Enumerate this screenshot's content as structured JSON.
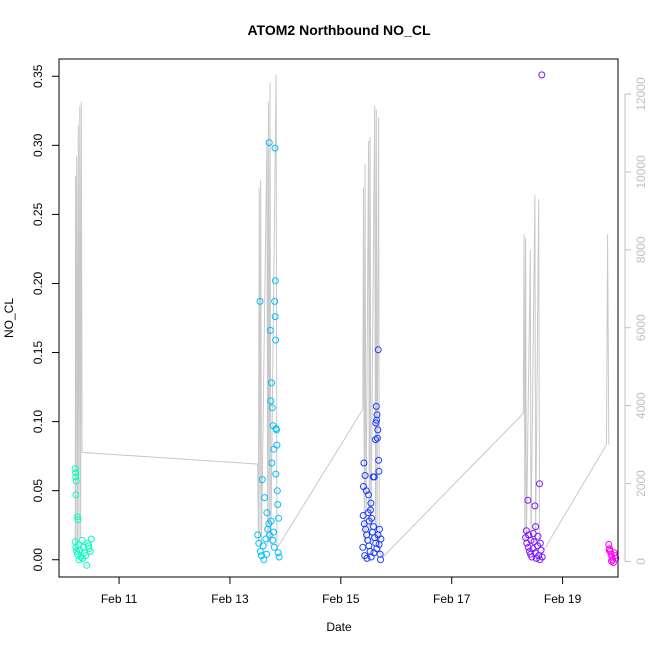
{
  "chart_data": {
    "type": "scatter",
    "title": "ATOM2 Northbound NO_CL",
    "xlabel": "Date",
    "ylabel": "NO_CL",
    "x_axis": {
      "type": "date",
      "range": [
        "2014-02-09T22:00",
        "2014-02-19T23:59"
      ],
      "ticks": [
        {
          "value": "2014-02-11",
          "label": "Feb 11"
        },
        {
          "value": "2014-02-13",
          "label": "Feb 13"
        },
        {
          "value": "2014-02-15",
          "label": "Feb 15"
        },
        {
          "value": "2014-02-17",
          "label": "Feb 17"
        },
        {
          "value": "2014-02-19",
          "label": "Feb 19"
        }
      ]
    },
    "y_axis": {
      "range": [
        -0.0125,
        0.3625
      ],
      "ticks": [
        0.0,
        0.05,
        0.1,
        0.15,
        0.2,
        0.25,
        0.3,
        0.35
      ],
      "tick_labels": [
        "0.00",
        "0.05",
        "0.10",
        "0.15",
        "0.20",
        "0.25",
        "0.30",
        "0.35"
      ]
    },
    "y2_axis": {
      "range": [
        -400,
        12900
      ],
      "ticks": [
        0,
        2000,
        4000,
        6000,
        8000,
        10000,
        12000
      ],
      "tick_labels": [
        "0",
        "2000",
        "4000",
        "6000",
        "8000",
        "10000",
        "12000"
      ],
      "color": "#c0c0c0"
    },
    "colors": {
      "g1": "#00ffbf",
      "g2": "#00bfff",
      "g3": "#1c3cff",
      "g4": "#7b17ff",
      "g5": "#ff00ff",
      "line": "#c8c8c8",
      "frame": "#000000"
    },
    "point_groups": [
      {
        "color_key": "g1",
        "points": [
          [
            "2014-02-10T05:00",
            0.066
          ],
          [
            "2014-02-10T05:10",
            0.063
          ],
          [
            "2014-02-10T05:15",
            0.06
          ],
          [
            "2014-02-10T05:30",
            0.057
          ],
          [
            "2014-02-10T05:20",
            0.047
          ],
          [
            "2014-02-10T06:00",
            0.031
          ],
          [
            "2014-02-10T06:10",
            0.029
          ],
          [
            "2014-02-10T05:00",
            0.013
          ],
          [
            "2014-02-10T05:20",
            0.009
          ],
          [
            "2014-02-10T05:40",
            0.006
          ],
          [
            "2014-02-10T06:00",
            0.004
          ],
          [
            "2014-02-10T06:30",
            0.011
          ],
          [
            "2014-02-10T07:00",
            0.007
          ],
          [
            "2014-02-10T07:30",
            0.002
          ],
          [
            "2014-02-10T08:00",
            0.014
          ],
          [
            "2014-02-10T08:30",
            0.009
          ],
          [
            "2014-02-10T09:00",
            0.005
          ],
          [
            "2014-02-10T09:30",
            0.003
          ],
          [
            "2014-02-10T10:00",
            -0.004
          ],
          [
            "2014-02-10T10:30",
            0.012
          ],
          [
            "2014-02-10T11:00",
            0.008
          ],
          [
            "2014-02-10T11:30",
            0.006
          ],
          [
            "2014-02-10T12:00",
            0.015
          ],
          [
            "2014-02-10T06:40",
            0.0
          ],
          [
            "2014-02-10T08:10",
            0.001
          ],
          [
            "2014-02-10T10:50",
            0.01
          ]
        ]
      },
      {
        "color_key": "g2",
        "points": [
          [
            "2014-02-13T13:00",
            0.187
          ],
          [
            "2014-02-13T14:00",
            0.058
          ],
          [
            "2014-02-13T15:00",
            0.045
          ],
          [
            "2014-02-13T16:00",
            0.034
          ],
          [
            "2014-02-13T17:00",
            0.302
          ],
          [
            "2014-02-13T17:30",
            0.166
          ],
          [
            "2014-02-13T18:00",
            0.128
          ],
          [
            "2014-02-13T17:40",
            0.115
          ],
          [
            "2014-02-13T18:20",
            0.11
          ],
          [
            "2014-02-13T18:40",
            0.097
          ],
          [
            "2014-02-13T19:00",
            0.08
          ],
          [
            "2014-02-13T18:10",
            0.07
          ],
          [
            "2014-02-13T19:30",
            0.298
          ],
          [
            "2014-02-13T19:40",
            0.202
          ],
          [
            "2014-02-13T19:20",
            0.187
          ],
          [
            "2014-02-13T19:35",
            0.176
          ],
          [
            "2014-02-13T19:45",
            0.159
          ],
          [
            "2014-02-13T20:00",
            0.095
          ],
          [
            "2014-02-13T20:10",
            0.094
          ],
          [
            "2014-02-13T20:20",
            0.083
          ],
          [
            "2014-02-13T19:50",
            0.062
          ],
          [
            "2014-02-13T20:30",
            0.05
          ],
          [
            "2014-02-13T20:40",
            0.04
          ],
          [
            "2014-02-13T21:00",
            0.03
          ],
          [
            "2014-02-13T12:00",
            0.018
          ],
          [
            "2014-02-13T12:30",
            0.012
          ],
          [
            "2014-02-13T13:10",
            0.006
          ],
          [
            "2014-02-13T13:40",
            0.003
          ],
          [
            "2014-02-13T14:20",
            0.01
          ],
          [
            "2014-02-13T15:30",
            0.015
          ],
          [
            "2014-02-13T16:20",
            0.022
          ],
          [
            "2014-02-13T16:50",
            0.026
          ],
          [
            "2014-02-13T17:10",
            0.018
          ],
          [
            "2014-02-13T18:30",
            0.014
          ],
          [
            "2014-02-13T19:10",
            0.009
          ],
          [
            "2014-02-13T20:50",
            0.005
          ],
          [
            "2014-02-13T21:20",
            0.002
          ],
          [
            "2014-02-13T14:40",
            0.0
          ],
          [
            "2014-02-13T15:50",
            0.004
          ],
          [
            "2014-02-13T17:50",
            0.028
          ],
          [
            "2014-02-13T18:50",
            0.02
          ]
        ]
      },
      {
        "color_key": "g3",
        "points": [
          [
            "2014-02-15T10:00",
            0.07
          ],
          [
            "2014-02-15T10:30",
            0.061
          ],
          [
            "2014-02-15T09:50",
            0.053
          ],
          [
            "2014-02-15T11:00",
            0.05
          ],
          [
            "2014-02-15T12:00",
            0.047
          ],
          [
            "2014-02-15T13:00",
            0.041
          ],
          [
            "2014-02-15T14:00",
            0.06
          ],
          [
            "2014-02-15T14:30",
            0.06
          ],
          [
            "2014-02-15T15:00",
            0.087
          ],
          [
            "2014-02-15T15:20",
            0.111
          ],
          [
            "2014-02-15T15:40",
            0.105
          ],
          [
            "2014-02-15T15:30",
            0.101
          ],
          [
            "2014-02-15T15:10",
            0.099
          ],
          [
            "2014-02-15T16:00",
            0.094
          ],
          [
            "2014-02-15T15:50",
            0.088
          ],
          [
            "2014-02-15T16:10",
            0.152
          ],
          [
            "2014-02-15T16:20",
            0.072
          ],
          [
            "2014-02-15T16:30",
            0.064
          ],
          [
            "2014-02-15T09:40",
            0.032
          ],
          [
            "2014-02-15T10:10",
            0.026
          ],
          [
            "2014-02-15T10:40",
            0.022
          ],
          [
            "2014-02-15T11:10",
            0.018
          ],
          [
            "2014-02-15T11:40",
            0.014
          ],
          [
            "2014-02-15T12:10",
            0.01
          ],
          [
            "2014-02-15T12:40",
            0.006
          ],
          [
            "2014-02-15T13:10",
            0.002
          ],
          [
            "2014-02-15T13:40",
            0.02
          ],
          [
            "2014-02-15T14:10",
            0.024
          ],
          [
            "2014-02-15T14:40",
            0.016
          ],
          [
            "2014-02-15T15:05",
            0.012
          ],
          [
            "2014-02-15T15:35",
            0.008
          ],
          [
            "2014-02-15T16:05",
            0.018
          ],
          [
            "2014-02-15T16:35",
            0.011
          ],
          [
            "2014-02-15T17:00",
            0.004
          ],
          [
            "2014-02-15T17:20",
            0.015
          ],
          [
            "2014-02-15T09:30",
            0.009
          ],
          [
            "2014-02-15T10:20",
            0.003
          ],
          [
            "2014-02-15T11:20",
            0.001
          ],
          [
            "2014-02-15T12:20",
            0.028
          ],
          [
            "2014-02-15T13:20",
            0.03
          ],
          [
            "2014-02-15T14:20",
            0.005
          ],
          [
            "2014-02-15T16:45",
            0.022
          ],
          [
            "2014-02-15T17:10",
            0.0
          ],
          [
            "2014-02-15T11:50",
            0.034
          ],
          [
            "2014-02-15T12:50",
            0.036
          ]
        ]
      },
      {
        "color_key": "g4",
        "points": [
          [
            "2014-02-18T09:00",
            0.043
          ],
          [
            "2014-02-18T12:00",
            0.039
          ],
          [
            "2014-02-18T14:00",
            0.055
          ],
          [
            "2014-02-18T15:00",
            0.351
          ],
          [
            "2014-02-18T08:00",
            0.016
          ],
          [
            "2014-02-18T08:30",
            0.012
          ],
          [
            "2014-02-18T09:10",
            0.009
          ],
          [
            "2014-02-18T09:40",
            0.006
          ],
          [
            "2014-02-18T10:10",
            0.004
          ],
          [
            "2014-02-18T10:40",
            0.002
          ],
          [
            "2014-02-18T11:10",
            0.008
          ],
          [
            "2014-02-18T11:40",
            0.013
          ],
          [
            "2014-02-18T12:10",
            0.005
          ],
          [
            "2014-02-18T12:40",
            0.001
          ],
          [
            "2014-02-18T13:10",
            0.01
          ],
          [
            "2014-02-18T13:40",
            0.003
          ],
          [
            "2014-02-18T14:10",
            0.0
          ],
          [
            "2014-02-18T14:40",
            0.007
          ],
          [
            "2014-02-18T15:10",
            0.002
          ],
          [
            "2014-02-18T08:20",
            0.021
          ],
          [
            "2014-02-18T09:20",
            0.018
          ],
          [
            "2014-02-18T10:20",
            0.014
          ],
          [
            "2014-02-18T11:20",
            0.019
          ],
          [
            "2014-02-18T12:20",
            0.024
          ],
          [
            "2014-02-18T13:20",
            0.017
          ],
          [
            "2014-02-18T14:20",
            0.012
          ]
        ]
      },
      {
        "color_key": "g5",
        "points": [
          [
            "2014-02-19T20:00",
            0.011
          ],
          [
            "2014-02-19T20:20",
            0.008
          ],
          [
            "2014-02-19T20:40",
            0.006
          ],
          [
            "2014-02-19T21:00",
            0.004
          ],
          [
            "2014-02-19T21:20",
            0.002
          ],
          [
            "2014-02-19T21:40",
            0.0
          ],
          [
            "2014-02-19T22:00",
            -0.002
          ],
          [
            "2014-02-19T22:20",
            0.005
          ],
          [
            "2014-02-19T22:40",
            0.003
          ],
          [
            "2014-02-19T23:00",
            0.001
          ],
          [
            "2014-02-19T20:10",
            0.007
          ],
          [
            "2014-02-19T21:10",
            -0.001
          ]
        ]
      }
    ],
    "secondary_line": [
      [
        "2014-02-10T05:00",
        200
      ],
      [
        "2014-02-10T05:10",
        9900
      ],
      [
        "2014-02-10T05:20",
        300
      ],
      [
        "2014-02-10T05:40",
        10400
      ],
      [
        "2014-02-10T06:00",
        400
      ],
      [
        "2014-02-10T06:20",
        11200
      ],
      [
        "2014-02-10T06:40",
        500
      ],
      [
        "2014-02-10T07:00",
        11700
      ],
      [
        "2014-02-10T07:20",
        600
      ],
      [
        "2014-02-10T07:40",
        11800
      ],
      [
        "2014-02-10T08:00",
        2800
      ],
      [
        "2014-02-13T12:00",
        2500
      ],
      [
        "2014-02-13T12:20",
        500
      ],
      [
        "2014-02-13T12:40",
        9600
      ],
      [
        "2014-02-13T13:00",
        400
      ],
      [
        "2014-02-13T13:20",
        9800
      ],
      [
        "2014-02-13T13:40",
        500
      ],
      [
        "2014-02-13T16:00",
        10800
      ],
      [
        "2014-02-13T16:20",
        400
      ],
      [
        "2014-02-13T16:40",
        11800
      ],
      [
        "2014-02-13T17:00",
        500
      ],
      [
        "2014-02-13T17:20",
        12300
      ],
      [
        "2014-02-13T17:40",
        400
      ],
      [
        "2014-02-13T20:00",
        12500
      ],
      [
        "2014-02-13T20:20",
        300
      ],
      [
        "2014-02-13T21:00",
        400
      ],
      [
        "2014-02-15T09:30",
        3900
      ],
      [
        "2014-02-15T09:50",
        9600
      ],
      [
        "2014-02-15T10:10",
        500
      ],
      [
        "2014-02-15T10:30",
        10200
      ],
      [
        "2014-02-15T10:50",
        500
      ],
      [
        "2014-02-15T12:00",
        10800
      ],
      [
        "2014-02-15T12:20",
        500
      ],
      [
        "2014-02-15T12:40",
        10900
      ],
      [
        "2014-02-15T13:00",
        500
      ],
      [
        "2014-02-15T14:40",
        11700
      ],
      [
        "2014-02-15T15:00",
        500
      ],
      [
        "2014-02-15T15:20",
        11600
      ],
      [
        "2014-02-15T15:40",
        500
      ],
      [
        "2014-02-15T16:20",
        11400
      ],
      [
        "2014-02-15T16:40",
        500
      ],
      [
        "2014-02-15T17:00",
        200
      ],
      [
        "2014-02-15T18:00",
        100
      ],
      [
        "2014-02-18T07:00",
        3800
      ],
      [
        "2014-02-18T07:20",
        8400
      ],
      [
        "2014-02-18T07:40",
        500
      ],
      [
        "2014-02-18T08:00",
        8300
      ],
      [
        "2014-02-18T08:20",
        500
      ],
      [
        "2014-02-18T10:00",
        8000
      ],
      [
        "2014-02-18T10:20",
        500
      ],
      [
        "2014-02-18T12:00",
        9400
      ],
      [
        "2014-02-18T12:20",
        500
      ],
      [
        "2014-02-18T13:40",
        9300
      ],
      [
        "2014-02-18T14:00",
        500
      ],
      [
        "2014-02-18T14:20",
        400
      ],
      [
        "2014-02-18T16:00",
        300
      ],
      [
        "2014-02-19T19:00",
        3000
      ],
      [
        "2014-02-19T19:30",
        8400
      ],
      [
        "2014-02-19T20:00",
        3000
      ]
    ]
  }
}
